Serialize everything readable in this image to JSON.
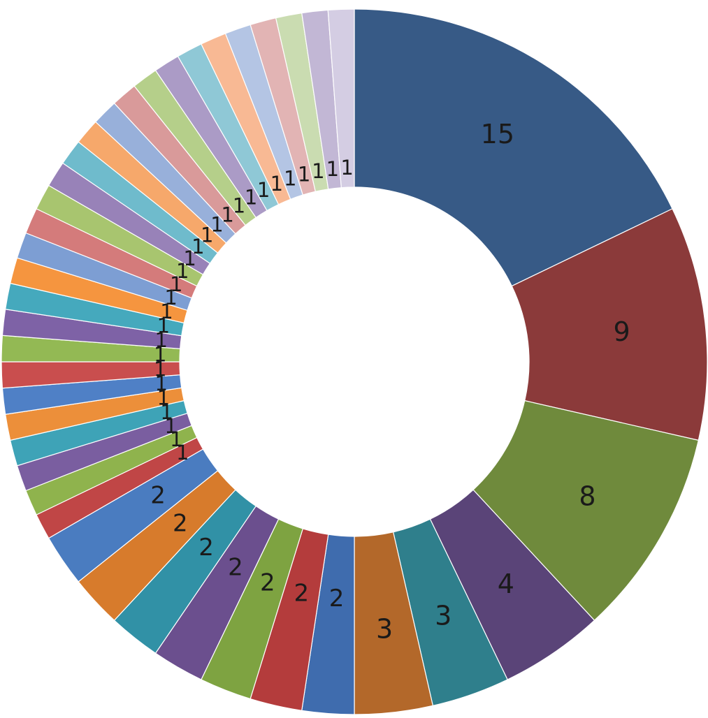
{
  "chart_data": {
    "type": "pie",
    "variant": "donut",
    "title": "",
    "legend": "none",
    "data_labels": "value",
    "start": "12 o'clock",
    "direction": "clockwise",
    "values": [
      15,
      9,
      8,
      4,
      3,
      3,
      2,
      2,
      2,
      2,
      2,
      2,
      2,
      1,
      1,
      1,
      1,
      1,
      1,
      1,
      1,
      1,
      1,
      1,
      1,
      1,
      1,
      1,
      1,
      1,
      1,
      1,
      1,
      1,
      1,
      1,
      1,
      1,
      1,
      1,
      1
    ],
    "colors": [
      "#375a86",
      "#8b3a3a",
      "#6f8a3c",
      "#5a4478",
      "#2f7f8c",
      "#b3682a",
      "#3f6cae",
      "#b43c3c",
      "#7ea341",
      "#6b4f8e",
      "#3191a6",
      "#d77b2c",
      "#4a7cc0",
      "#c04646",
      "#8fb34d",
      "#7a5ea0",
      "#3ea3b7",
      "#ec8f3a",
      "#4f80c6",
      "#c94e4e",
      "#93b954",
      "#7e62a6",
      "#45a9bd",
      "#f5953f",
      "#7d9ed3",
      "#d47b7b",
      "#a8c56f",
      "#9882b8",
      "#6fbbcc",
      "#f6a86b",
      "#98b0da",
      "#d99a9a",
      "#b5cf8a",
      "#ab9bc6",
      "#8fc8d6",
      "#f8b994",
      "#b4c5e4",
      "#e2b4b4",
      "#cadcb1",
      "#c2b7d5",
      "#d4cde3"
    ]
  }
}
